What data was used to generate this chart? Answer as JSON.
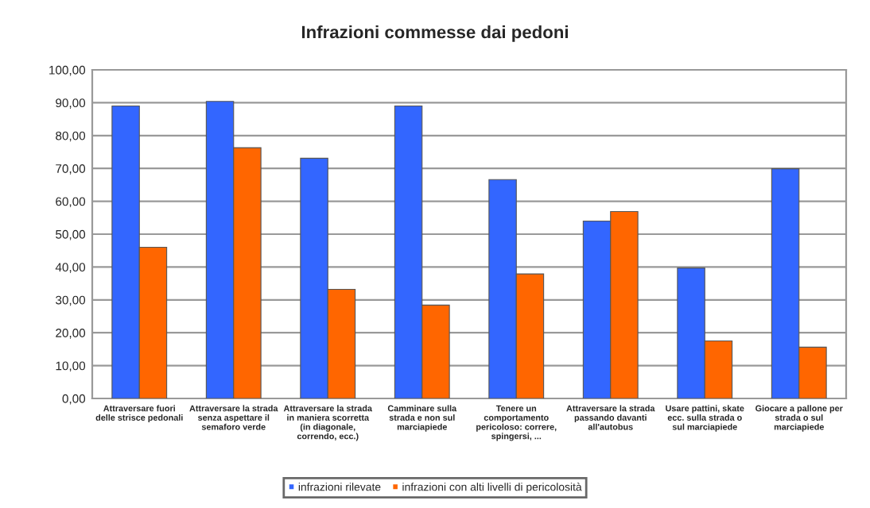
{
  "chart_data": {
    "type": "bar",
    "title": "Infrazioni commesse dai pedoni",
    "categories": [
      "Attraversare fuori\ndelle strisce pedonali",
      "Attraversare la strada\nsenza aspettare il\nsemaforo verde",
      "Attraversare la strada\nin maniera scorretta\n(in diagonale,\ncorrendo, ecc.)",
      "Camminare sulla\nstrada e non sul\nmarciapiede",
      "Tenere un\ncomportamento\npericoloso: correre,\nspingersi, ...",
      "Attraversare la strada\npassando davanti\nall'autobus",
      "Usare pattini, skate\necc. sulla strada o\nsul marciapiede",
      "Giocare a pallone per\nstrada o sul\nmarciapiede"
    ],
    "series": [
      {
        "name": "infrazioni rilevate",
        "color": "#3366ff",
        "values": [
          89.0,
          90.4,
          73.1,
          89.0,
          66.6,
          54.0,
          39.7,
          69.9
        ]
      },
      {
        "name": "infrazioni con alti livelli di pericolosità",
        "color": "#ff6600",
        "values": [
          46.0,
          76.3,
          33.2,
          28.4,
          37.9,
          56.9,
          17.5,
          15.6
        ]
      }
    ],
    "ylim": [
      0,
      100
    ],
    "yticks": [
      {
        "value": 0,
        "label": "0,00"
      },
      {
        "value": 10,
        "label": "10,00"
      },
      {
        "value": 20,
        "label": "20,00"
      },
      {
        "value": 30,
        "label": "30,00"
      },
      {
        "value": 40,
        "label": "40,00"
      },
      {
        "value": 50,
        "label": "50,00"
      },
      {
        "value": 60,
        "label": "60,00"
      },
      {
        "value": 70,
        "label": "70,00"
      },
      {
        "value": 80,
        "label": "80,00"
      },
      {
        "value": 90,
        "label": "90,00"
      },
      {
        "value": 100,
        "label": "100,00"
      }
    ],
    "grid": "y",
    "legend": "bottom"
  }
}
